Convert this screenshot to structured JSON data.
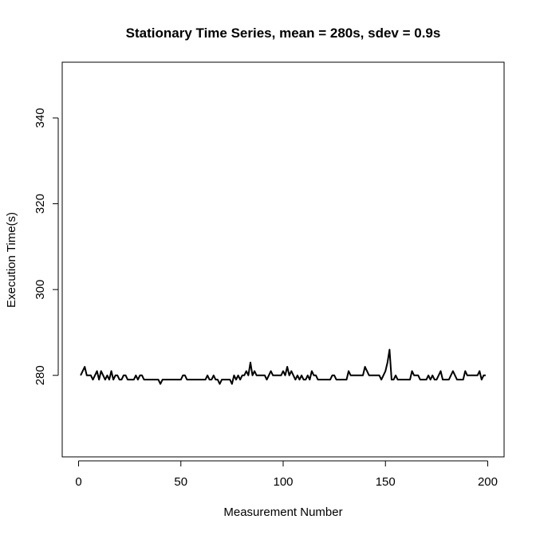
{
  "chart_data": {
    "type": "line",
    "title": "Stationary Time Series, mean = 280s, sdev = 0.9s",
    "xlabel": "Measurement Number",
    "ylabel": "Execution Time(s)",
    "xlim": [
      -8,
      208
    ],
    "ylim": [
      261,
      353
    ],
    "x_ticks": [
      0,
      50,
      100,
      150,
      200
    ],
    "y_ticks": [
      280,
      300,
      320,
      340
    ],
    "x_tick_labels": [
      "0",
      "50",
      "100",
      "150",
      "200"
    ],
    "y_tick_labels": [
      "280",
      "300",
      "320",
      "340"
    ],
    "grid": false,
    "series": [
      {
        "color": "#000000",
        "x": [
          1,
          2,
          3,
          4,
          5,
          6,
          7,
          8,
          9,
          10,
          11,
          12,
          13,
          14,
          15,
          16,
          17,
          18,
          19,
          20,
          21,
          22,
          23,
          24,
          25,
          26,
          27,
          28,
          29,
          30,
          31,
          32,
          33,
          34,
          35,
          36,
          37,
          38,
          39,
          40,
          41,
          42,
          43,
          44,
          45,
          46,
          47,
          48,
          49,
          50,
          51,
          52,
          53,
          54,
          55,
          56,
          57,
          58,
          59,
          60,
          61,
          62,
          63,
          64,
          65,
          66,
          67,
          68,
          69,
          70,
          71,
          72,
          73,
          74,
          75,
          76,
          77,
          78,
          79,
          80,
          81,
          82,
          83,
          84,
          85,
          86,
          87,
          88,
          89,
          90,
          91,
          92,
          93,
          94,
          95,
          96,
          97,
          98,
          99,
          100,
          101,
          102,
          103,
          104,
          105,
          106,
          107,
          108,
          109,
          110,
          111,
          112,
          113,
          114,
          115,
          116,
          117,
          118,
          119,
          120,
          121,
          122,
          123,
          124,
          125,
          126,
          127,
          128,
          129,
          130,
          131,
          132,
          133,
          134,
          135,
          136,
          137,
          138,
          139,
          140,
          141,
          142,
          143,
          144,
          145,
          146,
          147,
          148,
          149,
          150,
          151,
          152,
          153,
          154,
          155,
          156,
          157,
          158,
          159,
          160,
          161,
          162,
          163,
          164,
          165,
          166,
          167,
          168,
          169,
          170,
          171,
          172,
          173,
          174,
          175,
          176,
          177,
          178,
          179,
          180,
          181,
          182,
          183,
          184,
          185,
          186,
          187,
          188,
          189,
          190,
          191,
          192,
          193,
          194,
          195,
          196,
          197,
          198,
          199
        ],
        "y": [
          280,
          281,
          282,
          280,
          280,
          280,
          279,
          280,
          281,
          279,
          281,
          280,
          279,
          280,
          279,
          281,
          279,
          280,
          280,
          279,
          279,
          280,
          280,
          279,
          279,
          279,
          279,
          280,
          279,
          280,
          280,
          279,
          279,
          279,
          279,
          279,
          279,
          279,
          279,
          278,
          279,
          279,
          279,
          279,
          279,
          279,
          279,
          279,
          279,
          279,
          280,
          280,
          279,
          279,
          279,
          279,
          279,
          279,
          279,
          279,
          279,
          279,
          280,
          279,
          279,
          280,
          279,
          279,
          278,
          279,
          279,
          279,
          279,
          279,
          278,
          280,
          279,
          280,
          279,
          280,
          280,
          281,
          280,
          283,
          280,
          281,
          280,
          280,
          280,
          280,
          280,
          279,
          280,
          281,
          280,
          280,
          280,
          280,
          280,
          281,
          280,
          282,
          280,
          281,
          280,
          279,
          280,
          279,
          280,
          279,
          279,
          280,
          279,
          281,
          280,
          280,
          279,
          279,
          279,
          279,
          279,
          279,
          279,
          280,
          280,
          279,
          279,
          279,
          279,
          279,
          279,
          281,
          280,
          280,
          280,
          280,
          280,
          280,
          280,
          282,
          281,
          280,
          280,
          280,
          280,
          280,
          280,
          279,
          280,
          281,
          283,
          286,
          279,
          279,
          280,
          279,
          279,
          279,
          279,
          279,
          279,
          279,
          281,
          280,
          280,
          280,
          279,
          279,
          279,
          279,
          280,
          279,
          280,
          279,
          279,
          280,
          281,
          279,
          279,
          279,
          279,
          280,
          281,
          280,
          279,
          279,
          279,
          279,
          281,
          280,
          280,
          280,
          280,
          280,
          280,
          281,
          279,
          280,
          280
        ]
      }
    ]
  }
}
